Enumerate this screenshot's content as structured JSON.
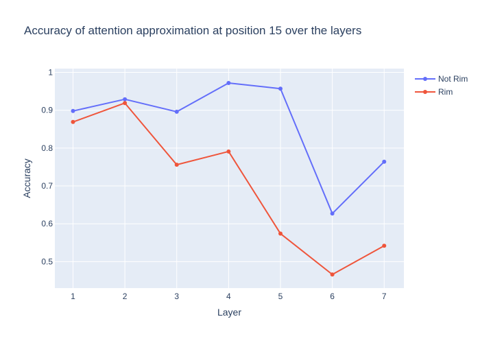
{
  "chart_data": {
    "type": "line",
    "title": "Accuracy of attention approximation at position 15 over the layers",
    "xlabel": "Layer",
    "ylabel": "Accuracy",
    "x": [
      1,
      2,
      3,
      4,
      5,
      6,
      7
    ],
    "xticks": [
      "1",
      "2",
      "3",
      "4",
      "5",
      "6",
      "7"
    ],
    "xlim": [
      0.65,
      7.38
    ],
    "yticks": [
      "0.5",
      "0.6",
      "0.7",
      "0.8",
      "0.9",
      "1"
    ],
    "ylim": [
      0.43,
      1.01
    ],
    "grid": true,
    "legend_position": "top-right",
    "series": [
      {
        "name": "Not Rim",
        "color": "#636efa",
        "values": [
          0.898,
          0.929,
          0.896,
          0.972,
          0.957,
          0.627,
          0.764
        ]
      },
      {
        "name": "Rim",
        "color": "#ef553b",
        "values": [
          0.869,
          0.919,
          0.756,
          0.791,
          0.574,
          0.466,
          0.542
        ]
      }
    ],
    "plot_bg": "#e5ecf6"
  }
}
